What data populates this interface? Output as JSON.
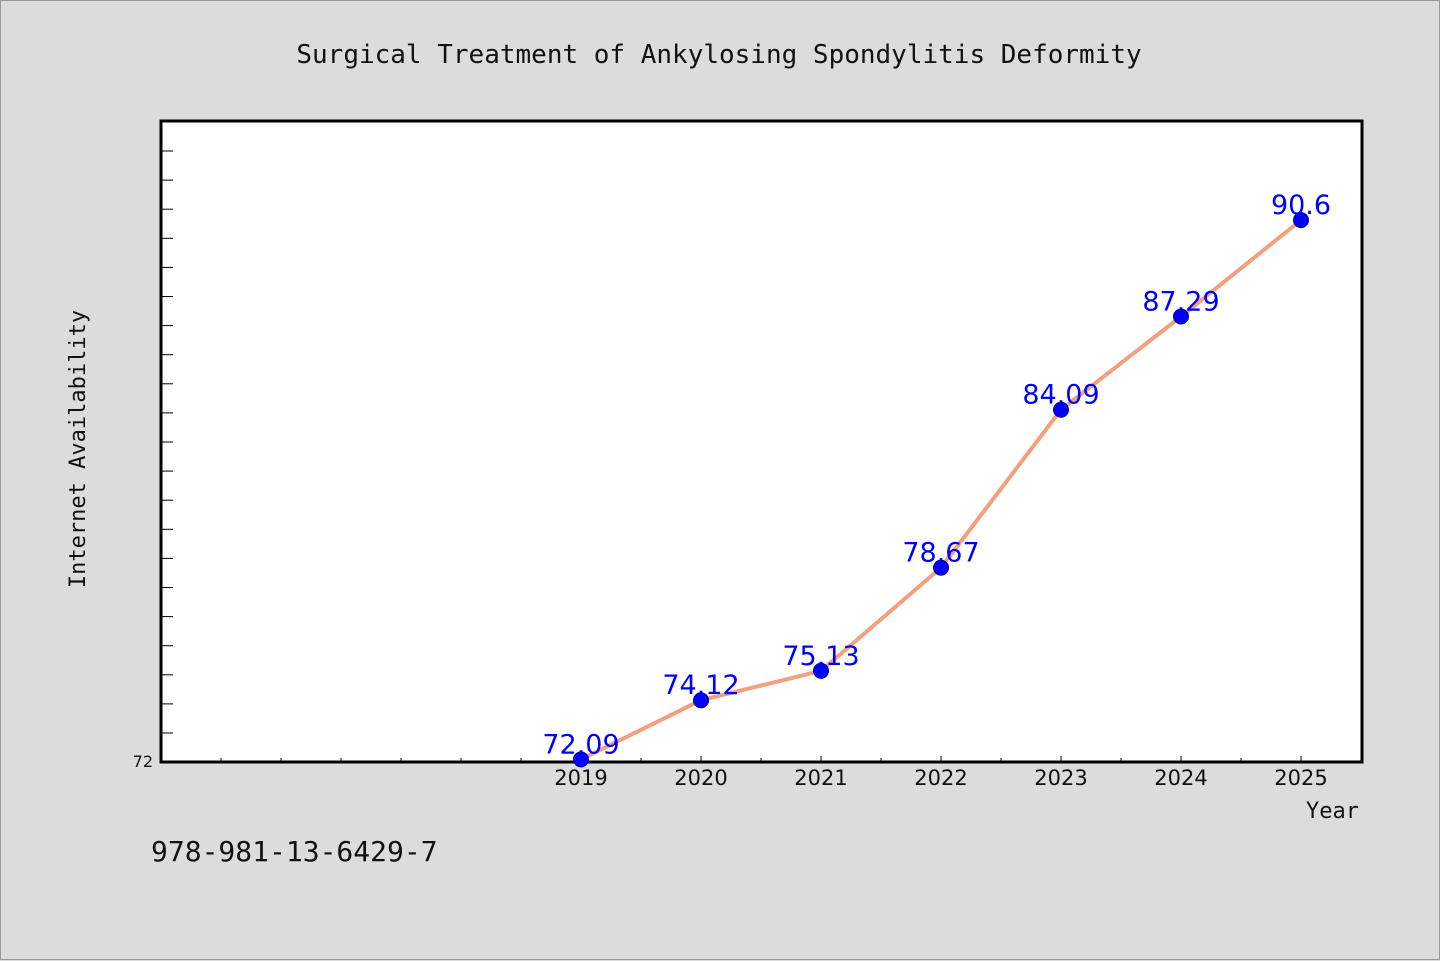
{
  "chart_data": {
    "type": "line",
    "title": "Surgical Treatment of Ankylosing Spondylitis Deformity",
    "xlabel": "Year",
    "ylabel": "Internet Availability",
    "categories": [
      "2019",
      "2020",
      "2021",
      "2022",
      "2023",
      "2024",
      "2025"
    ],
    "series": [
      {
        "values": [
          72.09,
          74.12,
          75.13,
          78.67,
          84.09,
          87.29,
          90.6
        ]
      }
    ],
    "data_labels": [
      "72.09",
      "74.12",
      "75.13",
      "78.67",
      "84.09",
      "87.29",
      "90.6"
    ],
    "y_tick_labels": [
      "72"
    ],
    "ylim": [
      72,
      94
    ],
    "grid": false,
    "colors": {
      "line": "#f4a07f",
      "marker": "#0000ff",
      "label": "#0000ff"
    }
  },
  "footnote": "978-981-13-6429-7"
}
